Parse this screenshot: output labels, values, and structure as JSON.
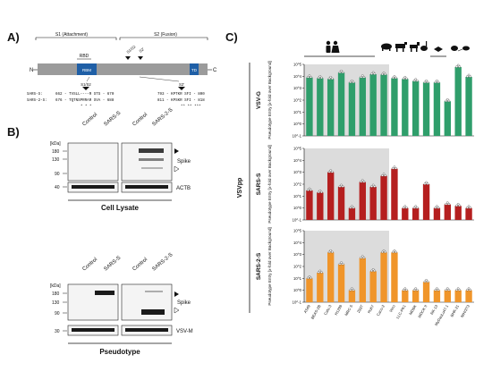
{
  "panels": {
    "a": "A)",
    "b": "B)",
    "c": "C)"
  },
  "panel_a": {
    "s1_label": "S1 (Attachment)",
    "s2_label": "S2 (Fusion)",
    "n_term": "N",
    "c_term": "C",
    "rbd": "RBD",
    "rbm": "RBM",
    "td": "TD",
    "site1": "S1/S2",
    "site2": "S2'",
    "site1_header": "S1/S2",
    "site2_header": "S2'",
    "rows": [
      {
        "name": "SARS-S:",
        "seq1": "662 - TVSLL----R STS - 670",
        "seq2": "793 - KPTKR SFI - 800"
      },
      {
        "name": "SARS-2-S:",
        "seq1": "676 - TQTNSPRRAR SVA - 688",
        "seq2": "811 - KPSKR SFI - 818"
      }
    ],
    "stars1": "*          *   *",
    "stars2": "** **  ***"
  },
  "panel_b": {
    "kda": "[kDa]",
    "lysate": {
      "col_labels": [
        "Control",
        "SARS-S",
        "Control",
        "SARS-2-S"
      ],
      "markers": [
        "180",
        "130",
        "90"
      ],
      "loading_marker": "40",
      "spike_label": "Spike",
      "loading_label": "ACTB",
      "caption": "Cell Lysate"
    },
    "pseudotype": {
      "col_labels": [
        "Control",
        "SARS-S",
        "Control",
        "SARS-2-S"
      ],
      "markers": [
        "180",
        "130",
        "90"
      ],
      "loading_marker": "30",
      "spike_label": "Spike",
      "loading_label": "VSV-M",
      "caption": "Pseudotype"
    }
  },
  "chart_data": [
    {
      "type": "bar",
      "title": "VSV-G",
      "ylabel": "Pseudotype Entry [x-fold over Background]",
      "yscale": "log",
      "ylim": [
        0.1,
        100000
      ],
      "y_ticks": [
        "10^5",
        "10^4",
        "10^3",
        "10^2",
        "10^1",
        "10^0",
        "10^-1"
      ],
      "color": "#2f9e6b",
      "categories": [
        "A549",
        "BEAS-2B",
        "Calu-3",
        "H1299",
        "MRC-5",
        "293T",
        "Huh7",
        "Caco-2",
        "Vero",
        "LLC-PK1",
        "MDBK",
        "MDCK II",
        "RK-13",
        "MyDauLu47.1",
        "BHK-21",
        "NIH/3T3"
      ],
      "values": [
        8000,
        7000,
        6000,
        20000,
        3000,
        8000,
        15000,
        14000,
        7000,
        6000,
        4000,
        3000,
        3000,
        80,
        60000,
        9000
      ]
    },
    {
      "type": "bar",
      "title": "SARS-S",
      "ylabel": "Pseudotype Entry [x-fold over Background]",
      "yscale": "log",
      "ylim": [
        0.1,
        100000
      ],
      "y_ticks": [
        "10^5",
        "10^4",
        "10^3",
        "10^2",
        "10^1",
        "10^0",
        "10^-1"
      ],
      "color": "#b51f1f",
      "categories": [
        "A549",
        "BEAS-2B",
        "Calu-3",
        "H1299",
        "MRC-5",
        "293T",
        "Huh7",
        "Caco-2",
        "Vero",
        "LLC-PK1",
        "MDBK",
        "MDCK II",
        "RK-13",
        "MyDauLu47.1",
        "BHK-21",
        "NIH/3T3"
      ],
      "values": [
        30,
        20,
        1000,
        60,
        1,
        150,
        60,
        500,
        2000,
        1,
        1,
        100,
        1,
        2,
        1.5,
        1
      ]
    },
    {
      "type": "bar",
      "title": "SARS-2-S",
      "ylabel": "Pseudotype Entry [x-fold over Background]",
      "yscale": "log",
      "ylim": [
        0.1,
        100000
      ],
      "y_ticks": [
        "10^5",
        "10^4",
        "10^3",
        "10^2",
        "10^1",
        "10^0",
        "10^-1"
      ],
      "color": "#f0952a",
      "categories": [
        "A549",
        "BEAS-2B",
        "Calu-3",
        "H1299",
        "MRC-5",
        "293T",
        "Huh7",
        "Caco-2",
        "Vero",
        "LLC-PK1",
        "MDBK",
        "MDCK II",
        "RK-13",
        "MyDauLu47.1",
        "BHK-21",
        "NIH/3T3"
      ],
      "values": [
        10,
        30,
        1500,
        150,
        1,
        500,
        40,
        1500,
        1500,
        1,
        1,
        5,
        1,
        1,
        1,
        1
      ]
    }
  ],
  "panel_c": {
    "group_label": "VSVpp"
  }
}
